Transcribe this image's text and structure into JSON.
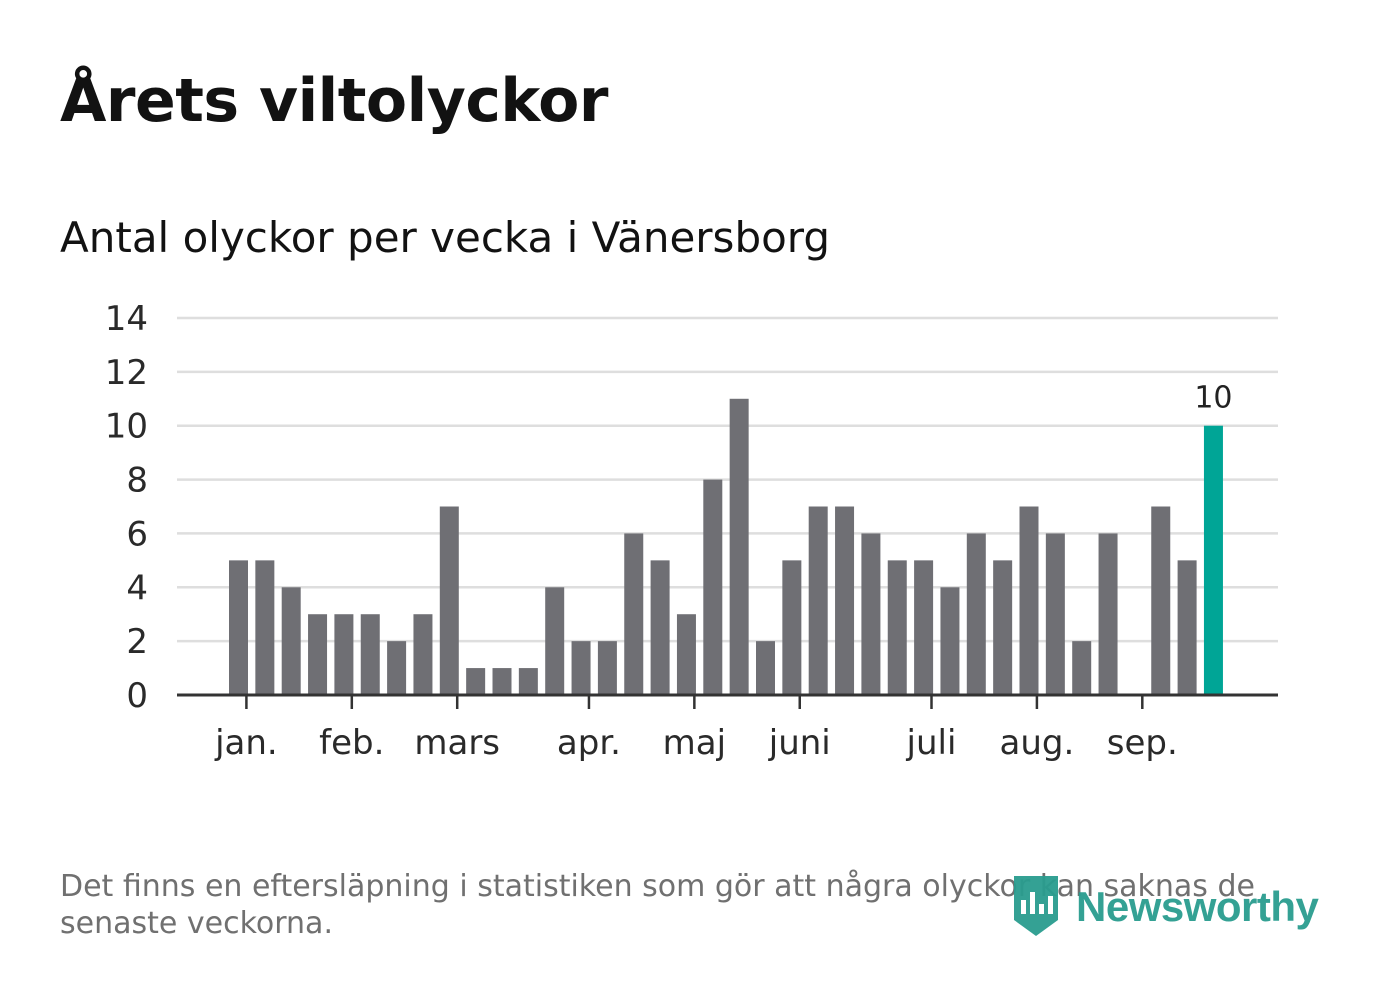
{
  "title": "Årets viltolyckor",
  "subtitle": "Antal olyckor per vecka i Vänersborg",
  "footnote": "Det finns en eftersläpning i statistiken som gör att några olyckor kan saknas de senaste veckorna.",
  "logo": {
    "text": "Newsworthy",
    "icon": "newsworthy-logo-icon",
    "color": "#2a9d8f"
  },
  "chart_data": {
    "type": "bar",
    "title": "Årets viltolyckor",
    "subtitle": "Antal olyckor per vecka i Vänersborg",
    "xlabel": "",
    "ylabel": "",
    "ylim": [
      0,
      14
    ],
    "yticks": [
      0,
      2,
      4,
      6,
      8,
      10,
      12,
      14
    ],
    "grid": true,
    "weeks": [
      1,
      2,
      3,
      4,
      5,
      6,
      7,
      8,
      9,
      10,
      11,
      12,
      13,
      14,
      15,
      16,
      17,
      18,
      19,
      20,
      21,
      22,
      23,
      24,
      25,
      26,
      27,
      28,
      29,
      30,
      31,
      32,
      33,
      34,
      35,
      36,
      37,
      38
    ],
    "values": [
      5,
      5,
      4,
      3,
      3,
      3,
      2,
      3,
      7,
      1,
      1,
      1,
      4,
      2,
      2,
      6,
      5,
      3,
      8,
      11,
      2,
      5,
      7,
      7,
      6,
      5,
      5,
      4,
      6,
      5,
      7,
      6,
      2,
      6,
      0,
      7,
      5,
      10
    ],
    "month_ticks": [
      {
        "label": "jan.",
        "week": 1.3
      },
      {
        "label": "feb.",
        "week": 5.3
      },
      {
        "label": "mars",
        "week": 9.3
      },
      {
        "label": "apr.",
        "week": 14.3
      },
      {
        "label": "maj",
        "week": 18.3
      },
      {
        "label": "juni",
        "week": 22.3
      },
      {
        "label": "juli",
        "week": 27.3
      },
      {
        "label": "aug.",
        "week": 31.3
      },
      {
        "label": "sep.",
        "week": 35.3
      }
    ],
    "highlight_index": 37,
    "highlight_label": "10",
    "bar_color": "#6f6f74",
    "highlight_color": "#00a596",
    "grid_color": "#dedede",
    "axis_color": "#333333"
  }
}
